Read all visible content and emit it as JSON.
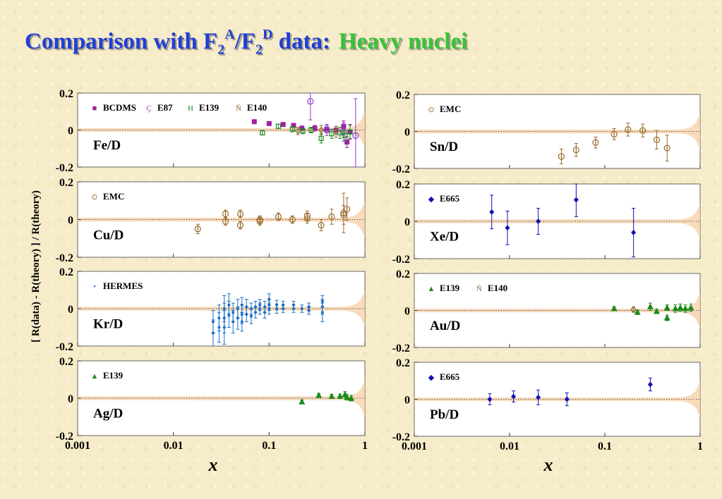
{
  "title": {
    "prefix": "Comparison with F",
    "sub1": "2",
    "sup1": "A",
    "slash": "/F",
    "sub2": "2",
    "sup2": "D",
    "suffix": " data:",
    "highlight": "Heavy nuclei"
  },
  "colors": {
    "title": "#1f3fd6",
    "highlight": "#36c23a",
    "band": "#f7cfa6",
    "BCDMS": "#a020a0",
    "E87": "#8a3ad0",
    "E139": "#1a8a1a",
    "E140": "#8a6a2a",
    "EMC": "#9a6a2a",
    "E665": "#1010b0",
    "HERMES": "#1a6ec8"
  },
  "ylabel": "[ R(data) - R(theory) ] / R(theory)",
  "xlabel": "x",
  "chart_data": [
    {
      "type": "scatter",
      "label": "Fe/D",
      "xscale": "log",
      "xlim": [
        0.001,
        1
      ],
      "ylim": [
        -0.2,
        0.2
      ],
      "yticks": [
        "0.2",
        "0",
        "-0.2"
      ],
      "xticks": [],
      "legend": [
        "BCDMS",
        "E87",
        "E139",
        "E140"
      ],
      "series": [
        {
          "name": "BCDMS",
          "marker": "square",
          "points": [
            [
              0.07,
              0.045,
              0.01
            ],
            [
              0.1,
              0.035,
              0.01
            ],
            [
              0.14,
              0.03,
              0.01
            ],
            [
              0.18,
              0.025,
              0.01
            ],
            [
              0.22,
              0.01,
              0.012
            ],
            [
              0.3,
              0.01,
              0.015
            ],
            [
              0.4,
              0.005,
              0.02
            ],
            [
              0.5,
              0.0,
              0.02
            ],
            [
              0.6,
              0.02,
              0.03
            ],
            [
              0.65,
              -0.065,
              0.03
            ],
            [
              0.7,
              -0.01,
              0.04
            ]
          ]
        },
        {
          "name": "E87",
          "marker": "open-circle",
          "points": [
            [
              0.27,
              0.155,
              0.1
            ],
            [
              0.4,
              0.0,
              0.03
            ],
            [
              0.6,
              -0.01,
              0.05
            ],
            [
              0.8,
              -0.03,
              0.2
            ]
          ]
        },
        {
          "name": "E139",
          "marker": "open-square",
          "points": [
            [
              0.085,
              -0.015,
              0.012
            ],
            [
              0.125,
              0.02,
              0.012
            ],
            [
              0.175,
              0.005,
              0.015
            ],
            [
              0.225,
              -0.005,
              0.015
            ],
            [
              0.275,
              0.0,
              0.015
            ],
            [
              0.35,
              -0.045,
              0.025
            ],
            [
              0.45,
              -0.02,
              0.025
            ],
            [
              0.55,
              -0.015,
              0.03
            ],
            [
              0.62,
              -0.03,
              0.03
            ],
            [
              0.7,
              -0.01,
              0.035
            ]
          ]
        },
        {
          "name": "E140",
          "marker": "open-diamond",
          "points": [
            [
              0.2,
              -0.005,
              0.02
            ],
            [
              0.35,
              0.0,
              0.025
            ],
            [
              0.5,
              -0.01,
              0.03
            ]
          ]
        }
      ]
    },
    {
      "type": "scatter",
      "label": "Cu/D",
      "xscale": "log",
      "xlim": [
        0.001,
        1
      ],
      "ylim": [
        -0.2,
        0.2
      ],
      "yticks": [
        "0.2",
        "0",
        "-0.2"
      ],
      "xticks": [],
      "legend": [
        "EMC"
      ],
      "series": [
        {
          "name": "EMC",
          "marker": "open-circle",
          "points": [
            [
              0.018,
              -0.05,
              0.025
            ],
            [
              0.035,
              0.03,
              0.02
            ],
            [
              0.035,
              -0.01,
              0.02
            ],
            [
              0.05,
              0.03,
              0.02
            ],
            [
              0.05,
              -0.03,
              0.02
            ],
            [
              0.08,
              0.0,
              0.02
            ],
            [
              0.08,
              -0.01,
              0.02
            ],
            [
              0.125,
              0.015,
              0.02
            ],
            [
              0.175,
              0.0,
              0.02
            ],
            [
              0.25,
              0.02,
              0.025
            ],
            [
              0.25,
              0.005,
              0.025
            ],
            [
              0.35,
              -0.03,
              0.03
            ],
            [
              0.45,
              0.015,
              0.04
            ],
            [
              0.6,
              0.035,
              0.105
            ],
            [
              0.6,
              0.025,
              0.05
            ],
            [
              0.65,
              0.055,
              0.06
            ]
          ]
        }
      ]
    },
    {
      "type": "scatter",
      "label": "Kr/D",
      "xscale": "log",
      "xlim": [
        0.001,
        1
      ],
      "ylim": [
        -0.2,
        0.2
      ],
      "yticks": [
        "0.2",
        "0",
        "-0.2"
      ],
      "xticks": [],
      "legend": [
        "HERMES"
      ],
      "series": [
        {
          "name": "HERMES",
          "marker": "dot",
          "points": [
            [
              0.026,
              -0.07,
              0.06
            ],
            [
              0.026,
              -0.13,
              0.07
            ],
            [
              0.03,
              -0.05,
              0.07
            ],
            [
              0.03,
              -0.1,
              0.08
            ],
            [
              0.034,
              0.0,
              0.07
            ],
            [
              0.034,
              -0.05,
              0.08
            ],
            [
              0.034,
              -0.1,
              0.09
            ],
            [
              0.038,
              0.02,
              0.06
            ],
            [
              0.038,
              -0.03,
              0.07
            ],
            [
              0.042,
              -0.02,
              0.05
            ],
            [
              0.042,
              -0.07,
              0.06
            ],
            [
              0.047,
              0.0,
              0.05
            ],
            [
              0.047,
              -0.05,
              0.06
            ],
            [
              0.052,
              0.02,
              0.04
            ],
            [
              0.052,
              -0.03,
              0.05
            ],
            [
              0.052,
              -0.07,
              0.05
            ],
            [
              0.058,
              0.01,
              0.04
            ],
            [
              0.058,
              -0.03,
              0.04
            ],
            [
              0.065,
              0.0,
              0.03
            ],
            [
              0.065,
              -0.04,
              0.04
            ],
            [
              0.072,
              0.01,
              0.03
            ],
            [
              0.072,
              -0.02,
              0.03
            ],
            [
              0.08,
              0.02,
              0.03
            ],
            [
              0.08,
              0.0,
              0.03
            ],
            [
              0.09,
              0.01,
              0.03
            ],
            [
              0.09,
              -0.02,
              0.03
            ],
            [
              0.1,
              0.05,
              0.03
            ],
            [
              0.1,
              0.02,
              0.03
            ],
            [
              0.1,
              0.0,
              0.03
            ],
            [
              0.12,
              0.02,
              0.025
            ],
            [
              0.12,
              0.0,
              0.025
            ],
            [
              0.14,
              0.0,
              0.02
            ],
            [
              0.14,
              0.02,
              0.02
            ],
            [
              0.18,
              0.02,
              0.02
            ],
            [
              0.18,
              0.0,
              0.02
            ],
            [
              0.22,
              0.0,
              0.02
            ],
            [
              0.26,
              0.01,
              0.02
            ],
            [
              0.26,
              -0.01,
              0.02
            ],
            [
              0.36,
              0.01,
              0.04
            ],
            [
              0.36,
              -0.02,
              0.05
            ],
            [
              0.36,
              0.04,
              0.03
            ]
          ]
        }
      ]
    },
    {
      "type": "scatter",
      "label": "Ag/D",
      "xscale": "log",
      "xlim": [
        0.001,
        1
      ],
      "ylim": [
        -0.2,
        0.2
      ],
      "yticks": [
        "0.2",
        "0",
        "-0.2"
      ],
      "xticks": [
        "0.001",
        "0.01",
        "0.1",
        "1"
      ],
      "legend": [
        "E139"
      ],
      "series": [
        {
          "name": "E139",
          "marker": "triangle",
          "points": [
            [
              0.22,
              -0.02,
              0.01
            ],
            [
              0.33,
              0.015,
              0.01
            ],
            [
              0.45,
              0.01,
              0.01
            ],
            [
              0.55,
              0.01,
              0.012
            ],
            [
              0.62,
              0.02,
              0.015
            ],
            [
              0.65,
              0.005,
              0.015
            ],
            [
              0.72,
              0.0,
              0.015
            ]
          ]
        }
      ]
    },
    {
      "type": "scatter",
      "label": "Sn/D",
      "xscale": "log",
      "xlim": [
        0.001,
        1
      ],
      "ylim": [
        -0.2,
        0.2
      ],
      "yticks": [
        "0.2",
        "0",
        "-0.2"
      ],
      "xticks": [],
      "legend": [
        "EMC"
      ],
      "series": [
        {
          "name": "EMC",
          "marker": "open-circle",
          "points": [
            [
              0.035,
              -0.135,
              0.04
            ],
            [
              0.05,
              -0.1,
              0.035
            ],
            [
              0.08,
              -0.06,
              0.03
            ],
            [
              0.125,
              -0.015,
              0.03
            ],
            [
              0.175,
              0.01,
              0.035
            ],
            [
              0.25,
              0.005,
              0.035
            ],
            [
              0.35,
              -0.045,
              0.05
            ],
            [
              0.45,
              -0.09,
              0.07
            ]
          ]
        }
      ]
    },
    {
      "type": "scatter",
      "label": "Xe/D",
      "xscale": "log",
      "xlim": [
        0.001,
        1
      ],
      "ylim": [
        -0.2,
        0.2
      ],
      "yticks": [
        "0.2",
        "0",
        "-0.2"
      ],
      "xticks": [],
      "legend": [
        "E665"
      ],
      "series": [
        {
          "name": "E665",
          "marker": "diamond",
          "points": [
            [
              0.0065,
              0.05,
              0.09
            ],
            [
              0.0095,
              -0.035,
              0.09
            ],
            [
              0.02,
              0.0,
              0.07
            ],
            [
              0.05,
              0.115,
              0.09
            ],
            [
              0.2,
              -0.06,
              0.13
            ]
          ]
        }
      ]
    },
    {
      "type": "scatter",
      "label": "Au/D",
      "xscale": "log",
      "xlim": [
        0.001,
        1
      ],
      "ylim": [
        -0.2,
        0.2
      ],
      "yticks": [
        "0.2",
        "0",
        "-0.2"
      ],
      "xticks": [],
      "legend": [
        "E139",
        "E140"
      ],
      "series": [
        {
          "name": "E139",
          "marker": "triangle",
          "points": [
            [
              0.125,
              0.01,
              0.01
            ],
            [
              0.22,
              -0.01,
              0.012
            ],
            [
              0.3,
              0.02,
              0.02
            ],
            [
              0.35,
              -0.005,
              0.012
            ],
            [
              0.45,
              0.015,
              0.015
            ],
            [
              0.45,
              -0.04,
              0.015
            ],
            [
              0.55,
              0.01,
              0.02
            ],
            [
              0.62,
              0.015,
              0.02
            ],
            [
              0.7,
              0.01,
              0.02
            ],
            [
              0.8,
              0.015,
              0.02
            ]
          ]
        },
        {
          "name": "E140",
          "marker": "open-diamond",
          "points": [
            [
              0.2,
              0.005,
              0.015
            ]
          ]
        }
      ]
    },
    {
      "type": "scatter",
      "label": "Pb/D",
      "xscale": "log",
      "xlim": [
        0.001,
        1
      ],
      "ylim": [
        -0.2,
        0.2
      ],
      "yticks": [
        "0.2",
        "0",
        "-0.2"
      ],
      "xticks": [
        "0.001",
        "0.01",
        "0.1",
        "1"
      ],
      "legend": [
        "E665"
      ],
      "series": [
        {
          "name": "E665",
          "marker": "diamond",
          "points": [
            [
              0.0062,
              0.0,
              0.03
            ],
            [
              0.011,
              0.015,
              0.03
            ],
            [
              0.02,
              0.01,
              0.04
            ],
            [
              0.04,
              0.0,
              0.035
            ],
            [
              0.3,
              0.08,
              0.035
            ]
          ]
        }
      ]
    }
  ]
}
